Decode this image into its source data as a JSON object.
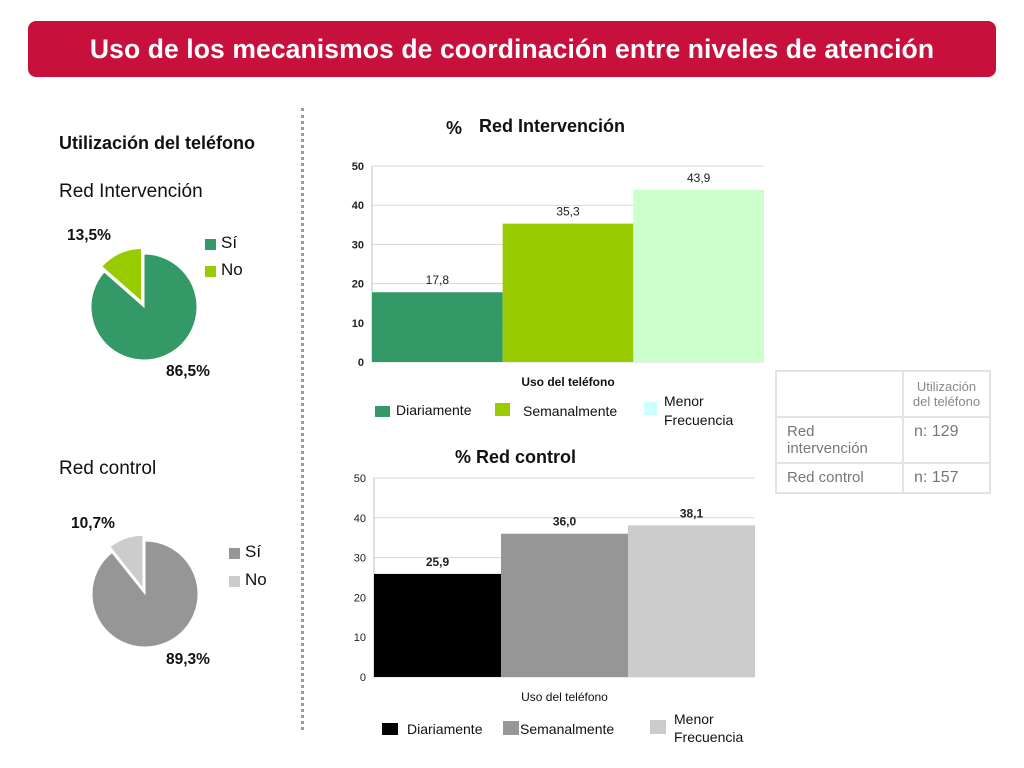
{
  "header": {
    "title": "Uso de los mecanismos de coordinación entre niveles de atención"
  },
  "left": {
    "section_title": "Utilización del teléfono",
    "pie1": {
      "title": "Red Intervención"
    },
    "pie2": {
      "title": "Red control"
    }
  },
  "colors": {
    "banner": "#c8103d",
    "green_dark": "#339966",
    "green_lime": "#99cc00",
    "green_pale": "#ccffcc",
    "black": "#000000",
    "gray_mid": "#969696",
    "gray_light": "#cccccc"
  },
  "table": {
    "header": "Utilización del teléfono",
    "rows": [
      {
        "label": "Red intervención",
        "value": "n: 129"
      },
      {
        "label": "Red control",
        "value": "n: 157"
      }
    ]
  },
  "chart_data": [
    {
      "type": "pie",
      "title": "Red Intervención",
      "labels": [
        "Sí",
        "No"
      ],
      "values": [
        86.5,
        13.5
      ],
      "value_labels": [
        "86,5%",
        "13,5%"
      ],
      "colors": [
        "#339966",
        "#99cc00"
      ],
      "legend": [
        "Sí",
        "No"
      ]
    },
    {
      "type": "pie",
      "title": "Red control",
      "labels": [
        "Sí",
        "No"
      ],
      "values": [
        89.3,
        10.7
      ],
      "value_labels": [
        "89,3%",
        "10,7%"
      ],
      "colors": [
        "#969696",
        "#cccccc"
      ],
      "legend": [
        "Sí",
        "No"
      ]
    },
    {
      "type": "bar",
      "title": "Red Intervención",
      "title_prefix": "%",
      "xlabel": "Uso del teléfono",
      "categories": [
        "Diariamente",
        "Semanalmente",
        "Menor Frecuencia"
      ],
      "values": [
        17.8,
        35.3,
        43.9
      ],
      "value_labels": [
        "17,8",
        "35,3",
        "43,9"
      ],
      "colors": [
        "#339966",
        "#99cc00",
        "#ccffcc"
      ],
      "legend_colors": [
        "#339966",
        "#99cc00",
        "#ccffff"
      ],
      "ylim": [
        0,
        50
      ],
      "yticks": [
        "0",
        "10",
        "20",
        "30",
        "40",
        "50"
      ],
      "legend": [
        "Diariamente",
        "Semanalmente",
        "Menor",
        "Frecuencia"
      ]
    },
    {
      "type": "bar",
      "title": "% Red control",
      "xlabel": "Uso del teléfono",
      "categories": [
        "Diariamente",
        "Semanalmente",
        "Menor Frecuencia"
      ],
      "values": [
        25.9,
        36.0,
        38.1
      ],
      "value_labels": [
        "25,9",
        "36,0",
        "38,1"
      ],
      "colors": [
        "#000000",
        "#969696",
        "#cccccc"
      ],
      "legend_colors": [
        "#000000",
        "#969696",
        "#cccccc"
      ],
      "ylim": [
        0,
        50
      ],
      "yticks": [
        "0",
        "10",
        "20",
        "30",
        "40",
        "50"
      ],
      "legend": [
        "Diariamente",
        "Semanalmente",
        "Menor",
        "Frecuencia"
      ]
    }
  ]
}
